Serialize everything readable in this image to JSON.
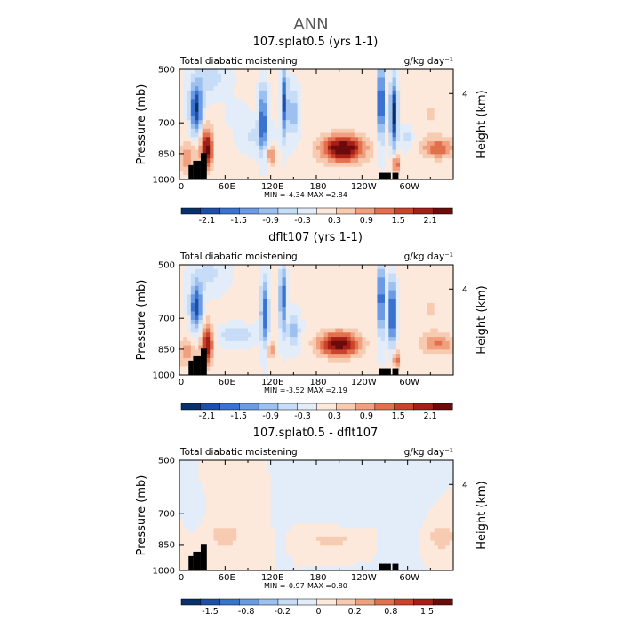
{
  "figure_title": "ANN",
  "colors": {
    "frame": "#000000",
    "land": "#000000",
    "diverging": [
      "#08306b",
      "#1d4fa8",
      "#3a72d0",
      "#6a9be3",
      "#9cc0ef",
      "#c7dcf6",
      "#e2edf9",
      "#fde9dc",
      "#f7cbb1",
      "#f0a07e",
      "#e3704d",
      "#c9442a",
      "#a51e17",
      "#6b0b0b"
    ]
  },
  "chart_data": [
    {
      "type": "heatmap",
      "title": "107.splat0.5 (yrs 1-1)",
      "subtitle_left": "Total diabatic moistening",
      "units": "g/kg day⁻¹",
      "ylabel": "Pressure (mb)",
      "ylabel_right": "Height (km)",
      "y_ticks": [
        "500",
        "700",
        "850",
        "1000"
      ],
      "y_right_ticks": [
        "4"
      ],
      "x_ticks": [
        "0",
        "60E",
        "120E",
        "180",
        "120W",
        "60W"
      ],
      "xlim": [
        0,
        360
      ],
      "ylim": [
        1000,
        500
      ],
      "stats": {
        "min_label": "MIN =",
        "min": "-4.34",
        "max_label": "MAX =",
        "max": "2.84"
      },
      "colorbar_labels": [
        "-2.1",
        "-1.5",
        "-0.9",
        "-0.3",
        "0.3",
        "0.9",
        "1.5",
        "2.1"
      ],
      "cmin": -2.4,
      "cmax": 2.4,
      "field": {
        "base": 0.06,
        "blobs": [
          {
            "lon": 22,
            "p": 680,
            "dlon": 8,
            "dp": 110,
            "amp": -2.2
          },
          {
            "lon": 36,
            "p": 860,
            "dlon": 8,
            "dp": 90,
            "amp": 2.2
          },
          {
            "lon": 10,
            "p": 900,
            "dlon": 12,
            "dp": 70,
            "amp": 0.9
          },
          {
            "lon": 75,
            "p": 700,
            "dlon": 12,
            "dp": 50,
            "amp": -0.4
          },
          {
            "lon": 100,
            "p": 800,
            "dlon": 20,
            "dp": 70,
            "amp": -0.5
          },
          {
            "lon": 110,
            "p": 720,
            "dlon": 5,
            "dp": 150,
            "amp": -1.8
          },
          {
            "lon": 138,
            "p": 650,
            "dlon": 4,
            "dp": 160,
            "amp": -1.9
          },
          {
            "lon": 150,
            "p": 700,
            "dlon": 7,
            "dp": 110,
            "amp": -1.0
          },
          {
            "lon": 120,
            "p": 890,
            "dlon": 6,
            "dp": 40,
            "amp": 1.1
          },
          {
            "lon": 215,
            "p": 860,
            "dlon": 28,
            "dp": 60,
            "amp": 2.5
          },
          {
            "lon": 265,
            "p": 650,
            "dlon": 3,
            "dp": 170,
            "amp": -3.2
          },
          {
            "lon": 282,
            "p": 700,
            "dlon": 5,
            "dp": 150,
            "amp": -2.4
          },
          {
            "lon": 285,
            "p": 930,
            "dlon": 5,
            "dp": 40,
            "amp": 1.5
          },
          {
            "lon": 300,
            "p": 810,
            "dlon": 8,
            "dp": 50,
            "amp": -0.6
          },
          {
            "lon": 340,
            "p": 860,
            "dlon": 22,
            "dp": 45,
            "amp": 1.2
          },
          {
            "lon": 330,
            "p": 700,
            "dlon": 30,
            "dp": 120,
            "amp": 0.3
          },
          {
            "lon": 40,
            "p": 540,
            "dlon": 22,
            "dp": 80,
            "amp": -0.6
          }
        ]
      },
      "land": [
        {
          "lon0": 12,
          "lon1": 18,
          "p": 935
        },
        {
          "lon0": 18,
          "lon1": 28,
          "p": 915
        },
        {
          "lon0": 28,
          "lon1": 36,
          "p": 880
        },
        {
          "lon0": 262,
          "lon1": 278,
          "p": 970
        },
        {
          "lon0": 280,
          "lon1": 288,
          "p": 970
        }
      ]
    },
    {
      "type": "heatmap",
      "title": "dflt107 (yrs 1-1)",
      "subtitle_left": "Total diabatic moistening",
      "units": "g/kg day⁻¹",
      "ylabel": "Pressure (mb)",
      "ylabel_right": "Height (km)",
      "y_ticks": [
        "500",
        "700",
        "850",
        "1000"
      ],
      "y_right_ticks": [
        "4"
      ],
      "x_ticks": [
        "0",
        "60E",
        "120E",
        "180",
        "120W",
        "60W"
      ],
      "xlim": [
        0,
        360
      ],
      "ylim": [
        1000,
        500
      ],
      "stats": {
        "min_label": "MIN =",
        "min": "-3.52",
        "max_label": "MAX =",
        "max": "2.19"
      },
      "colorbar_labels": [
        "-2.1",
        "-1.5",
        "-0.9",
        "-0.3",
        "0.3",
        "0.9",
        "1.5",
        "2.1"
      ],
      "cmin": -2.4,
      "cmax": 2.4,
      "field": {
        "base": 0.06,
        "blobs": [
          {
            "lon": 22,
            "p": 690,
            "dlon": 8,
            "dp": 110,
            "amp": -2.0
          },
          {
            "lon": 36,
            "p": 860,
            "dlon": 8,
            "dp": 90,
            "amp": 2.0
          },
          {
            "lon": 10,
            "p": 900,
            "dlon": 12,
            "dp": 70,
            "amp": 0.8
          },
          {
            "lon": 75,
            "p": 820,
            "dlon": 25,
            "dp": 40,
            "amp": -0.7
          },
          {
            "lon": 112,
            "p": 720,
            "dlon": 5,
            "dp": 150,
            "amp": -1.7
          },
          {
            "lon": 136,
            "p": 650,
            "dlon": 4,
            "dp": 160,
            "amp": -1.8
          },
          {
            "lon": 150,
            "p": 800,
            "dlon": 8,
            "dp": 80,
            "amp": -1.0
          },
          {
            "lon": 120,
            "p": 890,
            "dlon": 6,
            "dp": 40,
            "amp": 0.9
          },
          {
            "lon": 210,
            "p": 860,
            "dlon": 26,
            "dp": 55,
            "amp": 2.3
          },
          {
            "lon": 265,
            "p": 650,
            "dlon": 3,
            "dp": 170,
            "amp": -2.9
          },
          {
            "lon": 280,
            "p": 720,
            "dlon": 5,
            "dp": 150,
            "amp": -2.2
          },
          {
            "lon": 285,
            "p": 930,
            "dlon": 5,
            "dp": 40,
            "amp": 1.3
          },
          {
            "lon": 340,
            "p": 860,
            "dlon": 22,
            "dp": 45,
            "amp": 1.0
          },
          {
            "lon": 330,
            "p": 700,
            "dlon": 30,
            "dp": 120,
            "amp": 0.3
          },
          {
            "lon": 40,
            "p": 540,
            "dlon": 22,
            "dp": 80,
            "amp": -0.5
          }
        ]
      },
      "land": [
        {
          "lon0": 12,
          "lon1": 18,
          "p": 935
        },
        {
          "lon0": 18,
          "lon1": 28,
          "p": 915
        },
        {
          "lon0": 28,
          "lon1": 36,
          "p": 880
        },
        {
          "lon0": 262,
          "lon1": 278,
          "p": 970
        },
        {
          "lon0": 280,
          "lon1": 288,
          "p": 970
        }
      ]
    },
    {
      "type": "heatmap",
      "title": "107.splat0.5 - dflt107",
      "subtitle_left": "Total diabatic moistening",
      "units": "g/kg day⁻¹",
      "ylabel": "Pressure (mb)",
      "ylabel_right": "Height (km)",
      "y_ticks": [
        "500",
        "700",
        "850",
        "1000"
      ],
      "y_right_ticks": [
        "4"
      ],
      "x_ticks": [
        "0",
        "60E",
        "120E",
        "180",
        "120W",
        "60W"
      ],
      "xlim": [
        0,
        360
      ],
      "ylim": [
        1000,
        500
      ],
      "stats": {
        "min_label": "MIN =",
        "min": "-0.97",
        "max_label": "MAX =",
        "max": "0.80"
      },
      "colorbar_labels": [
        "-1.5",
        "-0.8",
        "-0.2",
        "0",
        "0.2",
        "0.8",
        "1.5"
      ],
      "cmin": -2.0,
      "cmax": 2.0,
      "field": {
        "base": 0.0,
        "blobs": [
          {
            "lon": 60,
            "p": 840,
            "dlon": 25,
            "dp": 60,
            "amp": 0.45
          },
          {
            "lon": 90,
            "p": 680,
            "dlon": 10,
            "dp": 120,
            "amp": 0.25
          },
          {
            "lon": 135,
            "p": 620,
            "dlon": 6,
            "dp": 130,
            "amp": -0.3
          },
          {
            "lon": 200,
            "p": 860,
            "dlon": 30,
            "dp": 30,
            "amp": 0.45
          },
          {
            "lon": 220,
            "p": 640,
            "dlon": 30,
            "dp": 90,
            "amp": -0.15
          },
          {
            "lon": 270,
            "p": 700,
            "dlon": 5,
            "dp": 150,
            "amp": -0.35
          },
          {
            "lon": 300,
            "p": 720,
            "dlon": 15,
            "dp": 150,
            "amp": -0.2
          },
          {
            "lon": 345,
            "p": 850,
            "dlon": 18,
            "dp": 60,
            "amp": 0.55
          },
          {
            "lon": 20,
            "p": 660,
            "dlon": 8,
            "dp": 120,
            "amp": -0.2
          },
          {
            "lon": 40,
            "p": 560,
            "dlon": 15,
            "dp": 70,
            "amp": 0.15
          }
        ]
      },
      "land": [
        {
          "lon0": 12,
          "lon1": 18,
          "p": 935
        },
        {
          "lon0": 18,
          "lon1": 28,
          "p": 915
        },
        {
          "lon0": 28,
          "lon1": 36,
          "p": 880
        },
        {
          "lon0": 262,
          "lon1": 278,
          "p": 970
        },
        {
          "lon0": 280,
          "lon1": 288,
          "p": 970
        }
      ]
    }
  ]
}
